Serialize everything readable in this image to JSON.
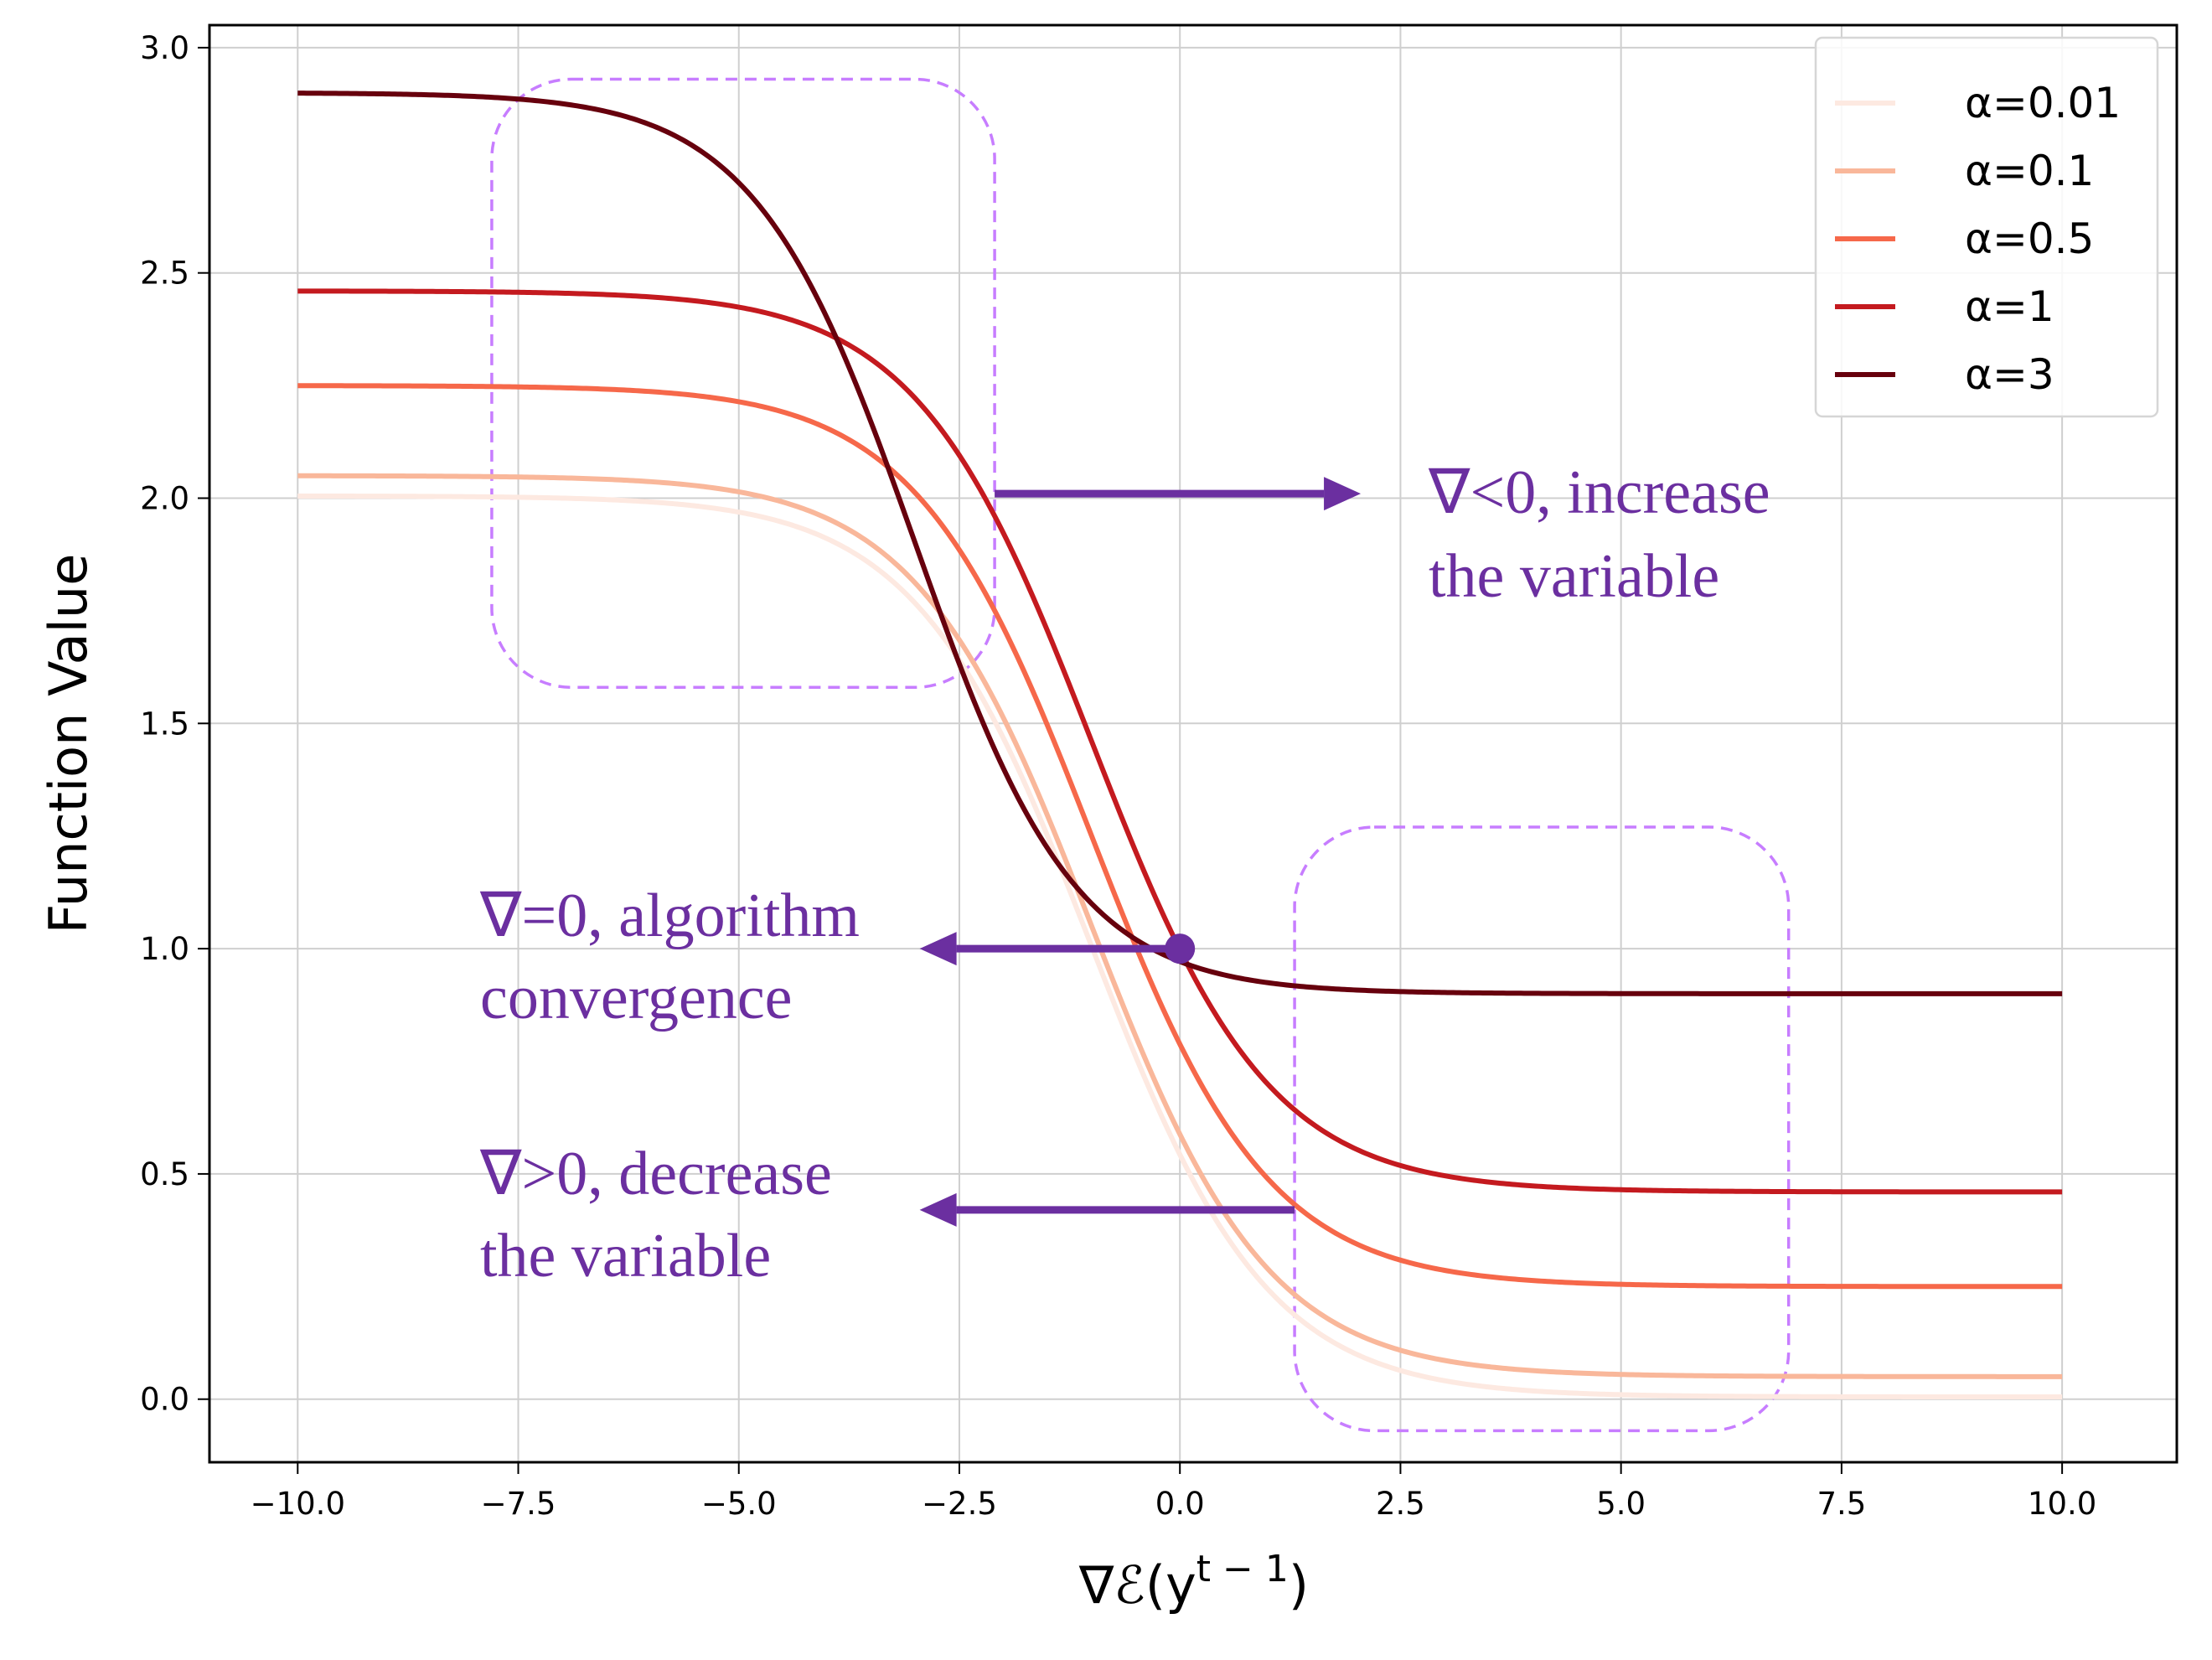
{
  "chart_data": {
    "type": "line",
    "xlabel": "∇ℰ(y",
    "xlabel_sup": "t − 1",
    "xlabel_close": ")",
    "ylabel": "Function Value",
    "xlim": [
      -11,
      11.3
    ],
    "ylim": [
      -0.14,
      3.05
    ],
    "x_ticks": [
      -10,
      -7.5,
      -5,
      -2.5,
      0,
      2.5,
      5,
      7.5,
      10
    ],
    "x_tick_labels": [
      "−10.0",
      "−7.5",
      "−5.0",
      "−2.5",
      "0.0",
      "2.5",
      "5.0",
      "7.5",
      "10.0"
    ],
    "y_ticks": [
      0,
      0.5,
      1,
      1.5,
      2,
      2.5,
      3
    ],
    "y_tick_labels": [
      "0.0",
      "0.5",
      "1.0",
      "1.5",
      "2.0",
      "2.5",
      "3.0"
    ],
    "grid": true,
    "legend_position": "top-right",
    "x_range": [
      -10,
      10
    ],
    "series": [
      {
        "name": "α=0.01",
        "alpha": 0.01,
        "high": 2.005,
        "low": 0.005,
        "center": -1.0,
        "width": 1.0,
        "color": "#fde9e1"
      },
      {
        "name": "α=0.1",
        "alpha": 0.1,
        "high": 2.05,
        "low": 0.05,
        "center": -1.0,
        "width": 1.0,
        "color": "#f9b79a"
      },
      {
        "name": "α=0.5",
        "alpha": 0.5,
        "high": 2.25,
        "low": 0.25,
        "center": -1.0,
        "width": 1.0,
        "color": "#f6684a"
      },
      {
        "name": "α=1",
        "alpha": 1,
        "high": 2.46,
        "low": 0.46,
        "center": -1.0,
        "width": 1.0,
        "color": "#c41a1f"
      },
      {
        "name": "α=3",
        "alpha": 3,
        "high": 2.9,
        "low": 0.9,
        "center": -3.0,
        "width": 0.91,
        "color": "#67000d"
      }
    ],
    "convergence_point": {
      "x": 0,
      "y": 1
    },
    "highlight_regions": [
      {
        "name": "left-region",
        "x_range": [
          -7.8,
          -2.1
        ],
        "y_range": [
          1.58,
          2.93
        ]
      },
      {
        "name": "right-region",
        "x_range": [
          1.3,
          6.9
        ],
        "y_range": [
          -0.07,
          1.27
        ]
      }
    ],
    "annotations": [
      {
        "name": "increase",
        "line1": "∇<0, increase",
        "line2": "the variable",
        "arrow_from_x": -2.1,
        "arrow_to_x": 2.05,
        "arrow_y": 2.01
      },
      {
        "name": "convergence",
        "line1": "∇=0, algorithm",
        "line2": "convergence",
        "arrow_from_x": 0,
        "arrow_to_x": -2.95,
        "arrow_y": 1.0
      },
      {
        "name": "decrease",
        "line1": "∇>0, decrease",
        "line2": "the variable",
        "arrow_from_x": 1.3,
        "arrow_to_x": -2.95,
        "arrow_y": 0.42
      }
    ],
    "annotation_color": "#6b2fa0",
    "region_color": "#c77dff"
  }
}
